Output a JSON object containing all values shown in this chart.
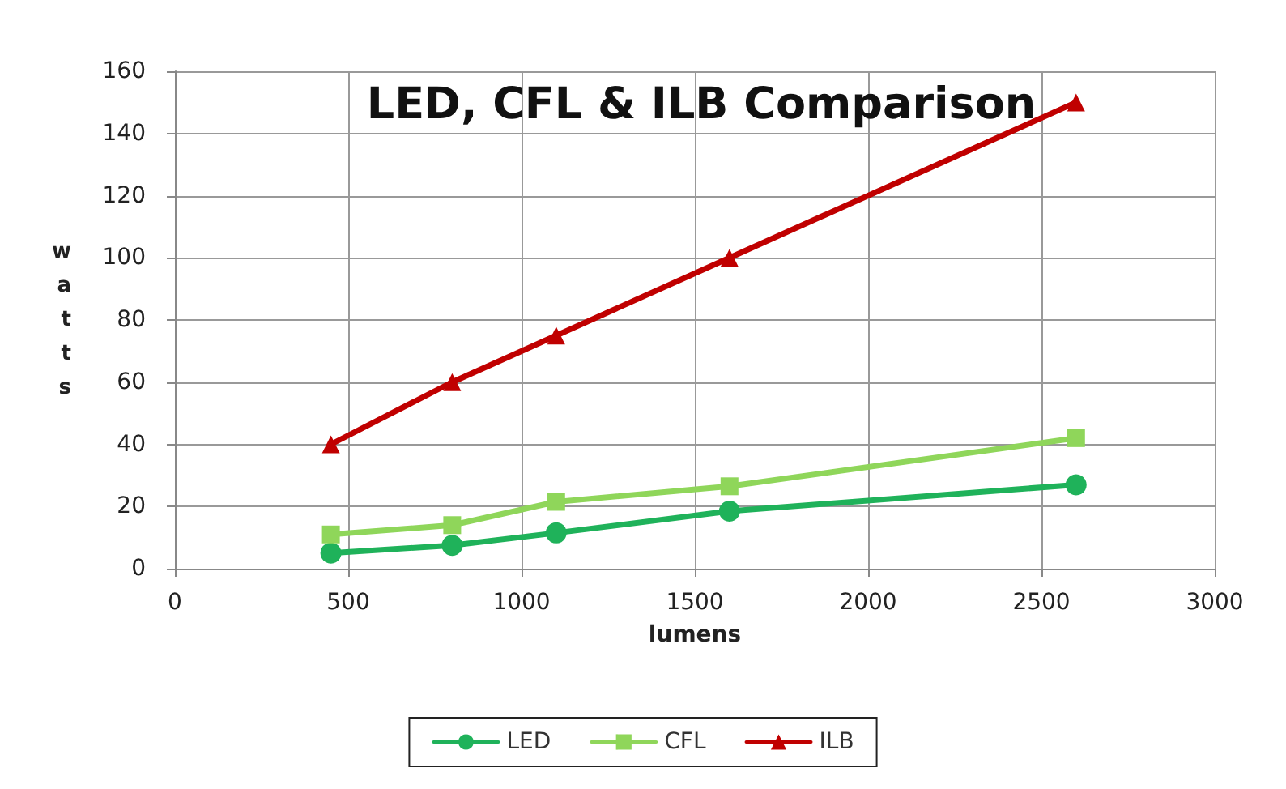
{
  "chart_data": {
    "type": "line",
    "title": "LED, CFL & ILB Comparison",
    "xlabel": "lumens",
    "ylabel": "watts",
    "xlim": [
      0,
      3000
    ],
    "xticks": [
      0,
      500,
      1000,
      1500,
      2000,
      2500,
      3000
    ],
    "ylim": [
      0,
      160
    ],
    "yticks": [
      0,
      20,
      40,
      60,
      80,
      100,
      120,
      140,
      160
    ],
    "grid": true,
    "legend": "bottom",
    "line_style": "solid",
    "series": [
      {
        "name": "LED",
        "color": "#1fb25a",
        "marker": "circle",
        "x": [
          450,
          800,
          1100,
          1600,
          2600
        ],
        "values": [
          5,
          7.5,
          11.5,
          18.5,
          27
        ]
      },
      {
        "name": "CFL",
        "color": "#8fd65a",
        "marker": "square",
        "x": [
          450,
          800,
          1100,
          1600,
          2600
        ],
        "values": [
          11,
          14,
          21.5,
          26.5,
          42
        ]
      },
      {
        "name": "ILB",
        "color": "#c00000",
        "marker": "triangle",
        "x": [
          450,
          800,
          1100,
          1600,
          2600
        ],
        "values": [
          40,
          60,
          75,
          100,
          150
        ]
      }
    ]
  }
}
